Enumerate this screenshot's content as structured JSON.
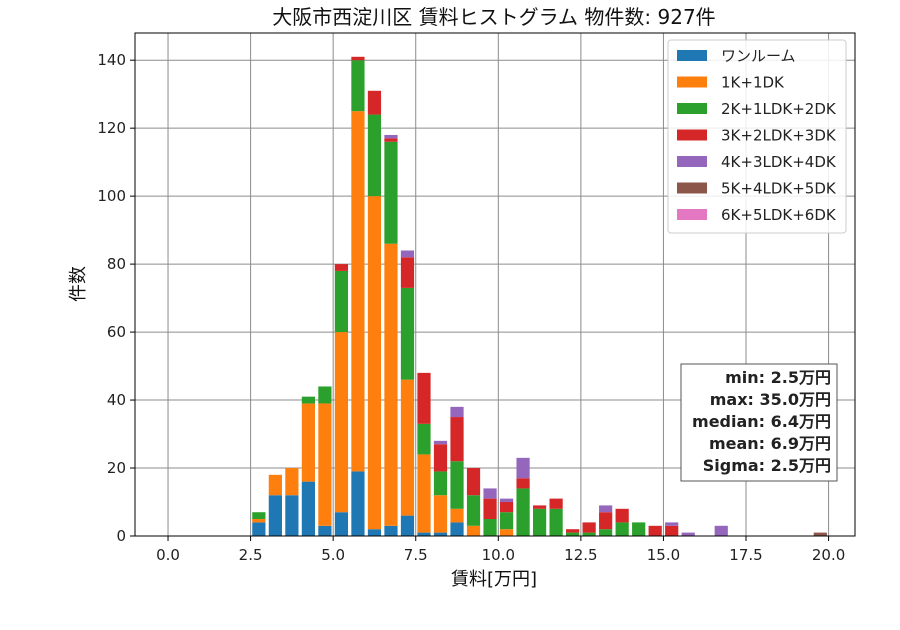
{
  "chart_data": {
    "type": "bar",
    "stacked": true,
    "title": "大阪市西淀川区 賃料ヒストグラム 物件数: 927件",
    "xlabel": "賃料[万円]",
    "ylabel": "件数",
    "xlim": [
      -1.0,
      20.8
    ],
    "ylim": [
      0,
      148
    ],
    "xticks": [
      0.0,
      2.5,
      5.0,
      7.5,
      10.0,
      12.5,
      15.0,
      17.5,
      20.0
    ],
    "xtick_labels": [
      "0.0",
      "2.5",
      "5.0",
      "7.5",
      "10.0",
      "12.5",
      "15.0",
      "17.5",
      "20.0"
    ],
    "yticks": [
      0,
      20,
      40,
      60,
      80,
      100,
      120,
      140
    ],
    "ytick_labels": [
      "0",
      "20",
      "40",
      "60",
      "80",
      "100",
      "120",
      "140"
    ],
    "grid": true,
    "legend_position": "top-right",
    "bin_width": 0.5,
    "bins": [
      2.5,
      3.0,
      3.5,
      4.0,
      4.5,
      5.0,
      5.5,
      6.0,
      6.5,
      7.0,
      7.5,
      8.0,
      8.5,
      9.0,
      9.5,
      10.0,
      10.5,
      11.0,
      11.5,
      12.0,
      12.5,
      13.0,
      13.5,
      14.0,
      14.5,
      15.0,
      15.5,
      16.0,
      16.5,
      17.0,
      17.5,
      18.0,
      18.5,
      19.0,
      19.5
    ],
    "series": [
      {
        "name": "ワンルーム",
        "color": "#1f77b4",
        "values": [
          4,
          12,
          12,
          16,
          3,
          7,
          19,
          2,
          3,
          6,
          1,
          1,
          4,
          0,
          0,
          0,
          0,
          0,
          0,
          0,
          0,
          0,
          0,
          0,
          0,
          0,
          0,
          0,
          0,
          0,
          0,
          0,
          0,
          0,
          0
        ]
      },
      {
        "name": "1K+1DK",
        "color": "#ff7f0e",
        "values": [
          1,
          6,
          8,
          23,
          36,
          53,
          106,
          98,
          83,
          40,
          23,
          11,
          4,
          3,
          0,
          2,
          0,
          0,
          0,
          0,
          0,
          0,
          0,
          0,
          0,
          0,
          0,
          0,
          0,
          0,
          0,
          0,
          0,
          0,
          0
        ]
      },
      {
        "name": "2K+1LDK+2DK",
        "color": "#2ca02c",
        "values": [
          2,
          0,
          0,
          2,
          5,
          18,
          15,
          24,
          30,
          27,
          9,
          7,
          14,
          9,
          5,
          5,
          14,
          8,
          8,
          1,
          1,
          2,
          4,
          4,
          0,
          0,
          0,
          0,
          0,
          0,
          0,
          0,
          0,
          0,
          0
        ]
      },
      {
        "name": "3K+2LDK+3DK",
        "color": "#d62728",
        "values": [
          0,
          0,
          0,
          0,
          0,
          2,
          1,
          7,
          1,
          9,
          15,
          8,
          13,
          8,
          6,
          3,
          3,
          1,
          3,
          1,
          3,
          5,
          4,
          0,
          3,
          3,
          0,
          0,
          0,
          0,
          0,
          0,
          0,
          0,
          0
        ]
      },
      {
        "name": "4K+3LDK+4DK",
        "color": "#9467bd",
        "values": [
          0,
          0,
          0,
          0,
          0,
          0,
          0,
          0,
          1,
          2,
          0,
          1,
          3,
          0,
          3,
          1,
          6,
          0,
          0,
          0,
          0,
          2,
          0,
          0,
          0,
          1,
          1,
          0,
          3,
          0,
          0,
          0,
          0,
          0,
          0
        ]
      },
      {
        "name": "5K+4LDK+5DK",
        "color": "#8c564b",
        "values": [
          0,
          0,
          0,
          0,
          0,
          0,
          0,
          0,
          0,
          0,
          0,
          0,
          0,
          0,
          0,
          0,
          0,
          0,
          0,
          0,
          0,
          0,
          0,
          0,
          0,
          0,
          0,
          0,
          0,
          0,
          0,
          0,
          0,
          0,
          1
        ]
      },
      {
        "name": "6K+5LDK+6DK",
        "color": "#e377c2",
        "values": [
          0,
          0,
          0,
          0,
          0,
          0,
          0,
          0,
          0,
          0,
          0,
          0,
          0,
          0,
          0,
          0,
          0,
          0,
          0,
          0,
          0,
          0,
          0,
          0,
          0,
          0,
          0,
          0,
          0,
          0,
          0,
          0,
          0,
          0,
          0
        ]
      }
    ],
    "annotations": {
      "stats": [
        "min: 2.5万円",
        "max: 35.0万円",
        "median: 6.4万円",
        "mean: 6.9万円",
        "Sigma: 2.5万円"
      ],
      "position": "bottom-right"
    }
  }
}
